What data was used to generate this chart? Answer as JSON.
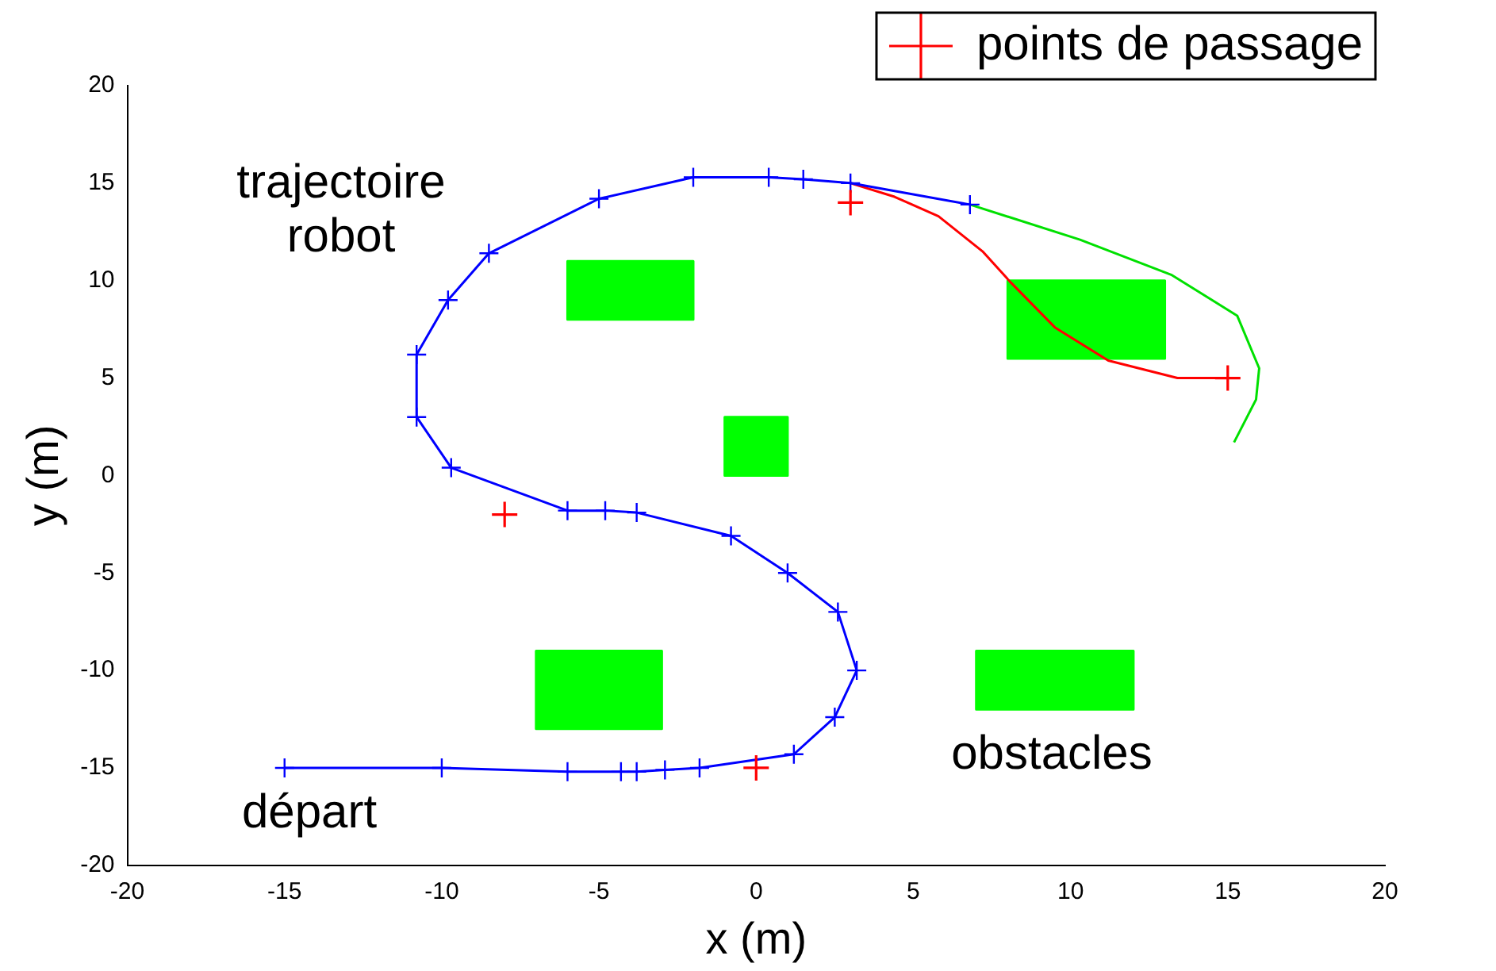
{
  "chart_data": {
    "type": "line",
    "xlabel": "x (m)",
    "ylabel": "y (m)",
    "xlim": [
      -20,
      20
    ],
    "xticks": [
      -20,
      -15,
      -10,
      -5,
      0,
      5,
      10,
      15,
      20
    ],
    "ylim": [
      -20,
      20
    ],
    "yticks": [
      -20,
      -15,
      -10,
      -5,
      0,
      5,
      10,
      15,
      20
    ],
    "grid": false,
    "legend": "top right",
    "line_style": "solid",
    "series": [
      {
        "type": "area",
        "color": "#00ff00",
        "marker": "none",
        "x": [
          -6,
          -2,
          -2,
          -6,
          -6
        ],
        "values": [
          8,
          8,
          11,
          11,
          8
        ]
      },
      {
        "type": "area",
        "color": "#00ff00",
        "marker": "none",
        "x": [
          8,
          13,
          13,
          8,
          8
        ],
        "values": [
          6,
          6,
          10,
          10,
          6
        ]
      },
      {
        "type": "area",
        "color": "#00ff00",
        "marker": "none",
        "x": [
          -1,
          1,
          1,
          -1,
          -1
        ],
        "values": [
          0,
          0,
          3,
          3,
          0
        ]
      },
      {
        "type": "area",
        "color": "#00ff00",
        "marker": "none",
        "x": [
          -7,
          -3,
          -3,
          -7,
          -7
        ],
        "values": [
          -13,
          -13,
          -9,
          -9,
          -13
        ]
      },
      {
        "type": "area",
        "color": "#00ff00",
        "marker": "none",
        "x": [
          7,
          12,
          12,
          7,
          7
        ],
        "values": [
          -12,
          -12,
          -9,
          -9,
          -12
        ]
      },
      {
        "color": "#00e000",
        "marker": "none",
        "x": [
          6.8,
          10.3,
          13.2,
          15.3,
          16,
          15.9,
          15.2
        ],
        "values": [
          13.9,
          12.1,
          10.3,
          8.2,
          5.5,
          3.9,
          1.7
        ]
      },
      {
        "color": "#ff0000",
        "marker": "none",
        "x": [
          3,
          4.4,
          5.8,
          7.2,
          8.1,
          9.5,
          11.2,
          13.4,
          15
        ],
        "values": [
          15,
          14.3,
          13.3,
          11.5,
          9.9,
          7.6,
          5.9,
          5,
          5
        ]
      },
      {
        "color": "#0000ff",
        "marker": "cross",
        "x": [
          -15,
          -10,
          -6,
          -4.3,
          -3.8,
          -2.9,
          -1.8,
          1.2,
          2.5,
          3.2,
          2.6,
          1,
          -0.8,
          -3.8,
          -4.8,
          -6,
          -9.7,
          -10.8,
          -10.8,
          -9.8,
          -8.5,
          -5,
          -2,
          0.4,
          1.5,
          3,
          6.8
        ],
        "values": [
          -15,
          -15,
          -15.2,
          -15.2,
          -15.2,
          -15.1,
          -15,
          -14.3,
          -12.4,
          -10,
          -7,
          -5,
          -3.1,
          -1.9,
          -1.8,
          -1.8,
          0.4,
          3,
          6.2,
          9,
          11.4,
          14.2,
          15.3,
          15.3,
          15.2,
          15,
          13.9
        ]
      },
      {
        "type": "scatter",
        "name": "points de passage",
        "color": "#ff0000",
        "marker": "cross",
        "x": [
          -8,
          0,
          3,
          15
        ],
        "values": [
          -2,
          -15,
          14,
          5
        ]
      }
    ],
    "annotations": [
      "trajectoire robot",
      "départ",
      "obstacles"
    ]
  }
}
